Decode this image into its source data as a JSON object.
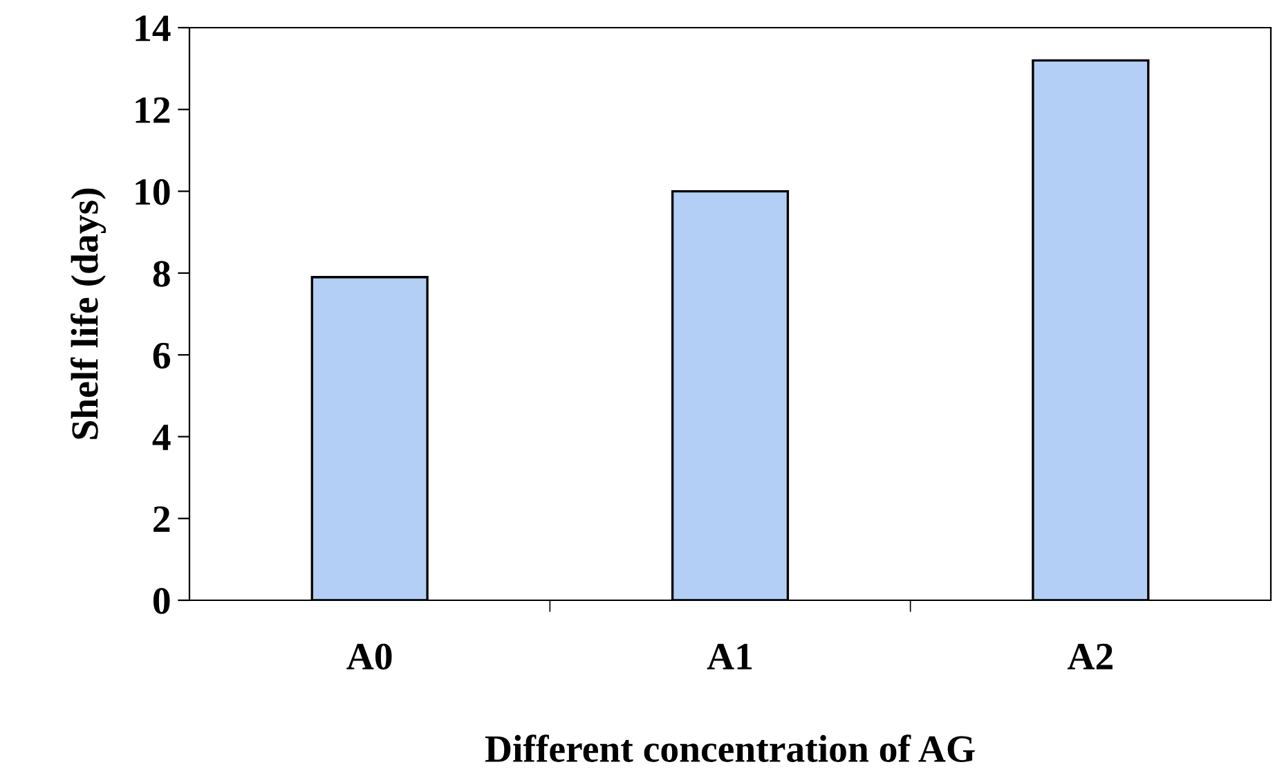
{
  "chart_data": {
    "type": "bar",
    "xlabel": "Different concentration of AG",
    "ylabel": "Shelf life (days)",
    "categories": [
      "A0",
      "A1",
      "A2"
    ],
    "values": [
      7.9,
      10.0,
      13.2
    ],
    "color": "#b3cff5",
    "ylim": [
      0,
      14
    ],
    "yticks": [
      0,
      2,
      4,
      6,
      8,
      10,
      12,
      14
    ],
    "grid": false
  }
}
